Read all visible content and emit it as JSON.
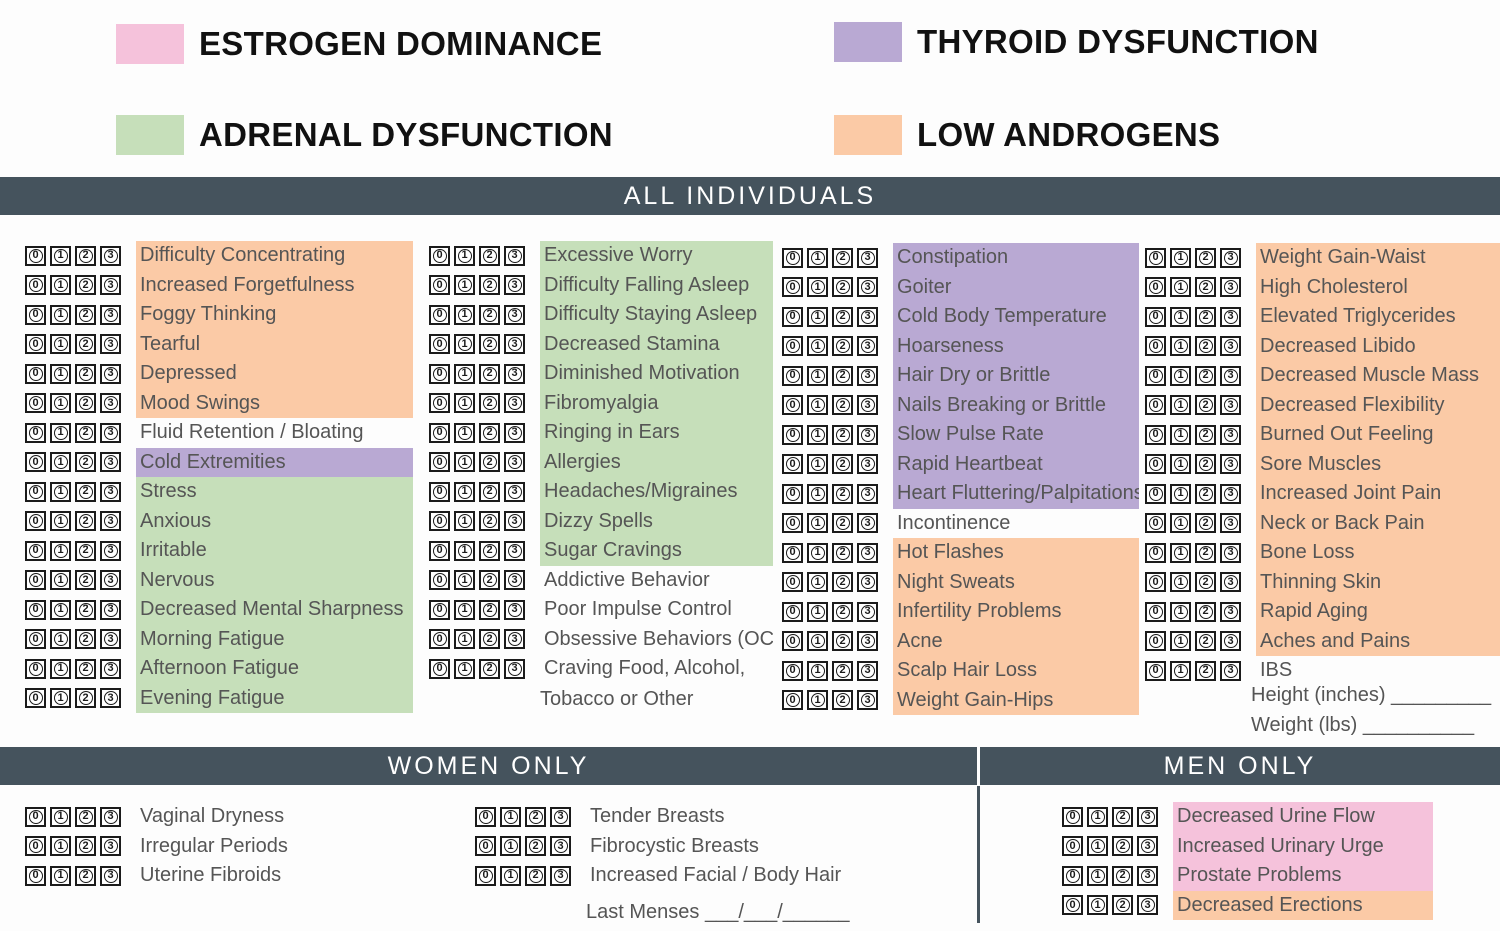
{
  "legend": [
    {
      "label": "ESTROGEN DOMINANCE",
      "color": "#f5c2db"
    },
    {
      "label": "THYROID DYSFUNCTION",
      "color": "#b9a9d3"
    },
    {
      "label": "ADRENAL DYSFUNCTION",
      "color": "#c6dfba"
    },
    {
      "label": "LOW ANDROGENS",
      "color": "#fbcaa6"
    }
  ],
  "sections": {
    "all_individuals": "ALL INDIVIDUALS",
    "women_only": "WOMEN ONLY",
    "men_only": "MEN ONLY"
  },
  "rating_scale": [
    "0",
    "1",
    "2",
    "3"
  ],
  "columns": [
    {
      "items": [
        {
          "label": "Difficulty Concentrating",
          "category": "orange"
        },
        {
          "label": "Increased Forgetfulness",
          "category": "orange"
        },
        {
          "label": "Foggy Thinking",
          "category": "orange"
        },
        {
          "label": "Tearful",
          "category": "orange"
        },
        {
          "label": "Depressed",
          "category": "orange"
        },
        {
          "label": "Mood Swings",
          "category": "orange"
        },
        {
          "label": "Fluid Retention / Bloating",
          "category": "none"
        },
        {
          "label": "Cold Extremities",
          "category": "purple"
        },
        {
          "label": "Stress",
          "category": "green"
        },
        {
          "label": "Anxious",
          "category": "green"
        },
        {
          "label": "Irritable",
          "category": "green"
        },
        {
          "label": "Nervous",
          "category": "green"
        },
        {
          "label": "Decreased Mental Sharpness",
          "category": "green"
        },
        {
          "label": "Morning Fatigue",
          "category": "green"
        },
        {
          "label": "Afternoon Fatigue",
          "category": "green"
        },
        {
          "label": "Evening Fatigue",
          "category": "green"
        }
      ]
    },
    {
      "items": [
        {
          "label": "Excessive Worry",
          "category": "green"
        },
        {
          "label": "Difficulty Falling Asleep",
          "category": "green"
        },
        {
          "label": "Difficulty Staying Asleep",
          "category": "green"
        },
        {
          "label": "Decreased Stamina",
          "category": "green"
        },
        {
          "label": "Diminished Motivation",
          "category": "green"
        },
        {
          "label": "Fibromyalgia",
          "category": "green"
        },
        {
          "label": "Ringing in Ears",
          "category": "green"
        },
        {
          "label": "Allergies",
          "category": "green"
        },
        {
          "label": "Headaches/Migraines",
          "category": "green"
        },
        {
          "label": "Dizzy Spells",
          "category": "green"
        },
        {
          "label": "Sugar Cravings",
          "category": "green"
        },
        {
          "label": "Addictive Behavior",
          "category": "none"
        },
        {
          "label": "Poor Impulse Control",
          "category": "none"
        },
        {
          "label": "Obsessive Behaviors (OCD)",
          "category": "none"
        },
        {
          "label": "Craving Food, Alcohol,",
          "category": "none"
        }
      ],
      "continuation": "Tobacco or Other"
    },
    {
      "items": [
        {
          "label": "Constipation",
          "category": "purple"
        },
        {
          "label": "Goiter",
          "category": "purple"
        },
        {
          "label": "Cold Body Temperature",
          "category": "purple"
        },
        {
          "label": "Hoarseness",
          "category": "purple"
        },
        {
          "label": "Hair Dry or Brittle",
          "category": "purple"
        },
        {
          "label": "Nails Breaking or Brittle",
          "category": "purple"
        },
        {
          "label": "Slow Pulse Rate",
          "category": "purple"
        },
        {
          "label": "Rapid Heartbeat",
          "category": "purple"
        },
        {
          "label": "Heart Fluttering/Palpitations",
          "category": "purple"
        },
        {
          "label": "Incontinence",
          "category": "none"
        },
        {
          "label": "Hot Flashes",
          "category": "orange"
        },
        {
          "label": "Night Sweats",
          "category": "orange"
        },
        {
          "label": "Infertility Problems",
          "category": "orange"
        },
        {
          "label": "Acne",
          "category": "orange"
        },
        {
          "label": "Scalp Hair Loss",
          "category": "orange"
        },
        {
          "label": "Weight Gain-Hips",
          "category": "orange"
        }
      ]
    },
    {
      "items": [
        {
          "label": "Weight Gain-Waist",
          "category": "orange"
        },
        {
          "label": "High Cholesterol",
          "category": "orange"
        },
        {
          "label": "Elevated Triglycerides",
          "category": "orange"
        },
        {
          "label": "Decreased Libido",
          "category": "orange"
        },
        {
          "label": "Decreased Muscle Mass",
          "category": "orange"
        },
        {
          "label": "Decreased Flexibility",
          "category": "orange"
        },
        {
          "label": "Burned Out Feeling",
          "category": "orange"
        },
        {
          "label": "Sore Muscles",
          "category": "orange"
        },
        {
          "label": "Increased Joint Pain",
          "category": "orange"
        },
        {
          "label": "Neck or Back Pain",
          "category": "orange"
        },
        {
          "label": "Bone Loss",
          "category": "orange"
        },
        {
          "label": "Thinning Skin",
          "category": "orange"
        },
        {
          "label": "Rapid Aging",
          "category": "orange"
        },
        {
          "label": "Aches and Pains",
          "category": "orange"
        },
        {
          "label": "IBS",
          "category": "none"
        }
      ],
      "extra_fields": [
        "Height (inches) _________",
        "Weight (lbs) __________"
      ]
    }
  ],
  "women": {
    "left": [
      {
        "label": "Vaginal Dryness",
        "category": "none"
      },
      {
        "label": "Irregular Periods",
        "category": "none"
      },
      {
        "label": "Uterine Fibroids",
        "category": "none"
      }
    ],
    "right": [
      {
        "label": "Tender Breasts",
        "category": "none"
      },
      {
        "label": "Fibrocystic Breasts",
        "category": "none"
      },
      {
        "label": "Increased Facial / Body Hair",
        "category": "none"
      }
    ],
    "last_menses": "Last Menses ___/___/______"
  },
  "men": [
    {
      "label": "Decreased Urine Flow",
      "category": "pink"
    },
    {
      "label": "Increased Urinary Urge",
      "category": "pink"
    },
    {
      "label": "Prostate Problems",
      "category": "pink"
    },
    {
      "label": "Decreased Erections",
      "category": "orange"
    }
  ]
}
